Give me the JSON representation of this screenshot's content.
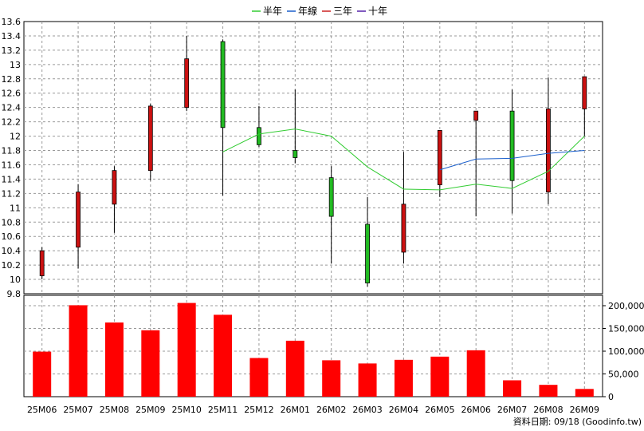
{
  "legend": [
    {
      "label": "半年",
      "color": "#33cc33"
    },
    {
      "label": "年線",
      "color": "#1a5fcc"
    },
    {
      "label": "三年",
      "color": "#cc2222"
    },
    {
      "label": "十年",
      "color": "#5522aa"
    }
  ],
  "footer": {
    "source": "資料日期: 09/18  (Goodinfo.tw)"
  },
  "colors": {
    "up": "#cc1111",
    "down": "#22bb22",
    "volume": "#ff0000",
    "half_year": "#33cc33",
    "year_line": "#1a5fcc",
    "grid": "#999999",
    "axis": "#000000"
  },
  "chart_data": [
    {
      "type": "candlestick",
      "categories": [
        "25M06",
        "25M07",
        "25M08",
        "25M09",
        "25M10",
        "25M11",
        "25M12",
        "26M01",
        "26M02",
        "26M03",
        "26M04",
        "26M05",
        "26M06",
        "26M07",
        "26M08",
        "26M09"
      ],
      "ylim": [
        9.8,
        13.6
      ],
      "yticks": [
        9.8,
        10,
        10.2,
        10.4,
        10.6,
        10.8,
        11,
        11.2,
        11.4,
        11.6,
        11.8,
        12,
        12.2,
        12.4,
        12.6,
        12.8,
        13,
        13.2,
        13.4,
        13.6
      ],
      "ytick_labels": [
        "9.8",
        "10",
        "10.2",
        "10.4",
        "10.6",
        "10.8",
        "11",
        "11.2",
        "11.4",
        "11.6",
        "11.8",
        "12",
        "12.2",
        "12.4",
        "12.6",
        "12.8",
        "13",
        "13.2",
        "13.4",
        "13.6"
      ],
      "candles": [
        {
          "open": 10.05,
          "close": 10.4,
          "high": 10.45,
          "low": 10.0
        },
        {
          "open": 10.45,
          "close": 11.22,
          "high": 11.33,
          "low": 10.15
        },
        {
          "open": 11.05,
          "close": 11.52,
          "high": 11.58,
          "low": 10.65
        },
        {
          "open": 11.52,
          "close": 12.42,
          "high": 12.45,
          "low": 11.38
        },
        {
          "open": 12.4,
          "close": 13.08,
          "high": 13.4,
          "low": 12.35
        },
        {
          "open": 13.32,
          "close": 12.12,
          "high": 13.35,
          "low": 11.17
        },
        {
          "open": 12.12,
          "close": 11.88,
          "high": 12.42,
          "low": 11.85
        },
        {
          "open": 11.8,
          "close": 11.7,
          "high": 12.65,
          "low": 11.62
        },
        {
          "open": 11.42,
          "close": 10.88,
          "high": 11.58,
          "low": 10.22
        },
        {
          "open": 10.77,
          "close": 9.95,
          "high": 11.15,
          "low": 9.9
        },
        {
          "open": 10.38,
          "close": 11.05,
          "high": 11.78,
          "low": 10.22
        },
        {
          "open": 11.32,
          "close": 12.08,
          "high": 12.08,
          "low": 11.15
        },
        {
          "open": 12.22,
          "close": 12.35,
          "high": 12.35,
          "low": 10.88
        },
        {
          "open": 12.35,
          "close": 11.38,
          "high": 12.65,
          "low": 10.92
        },
        {
          "open": 11.22,
          "close": 12.38,
          "high": 12.82,
          "low": 11.05
        },
        {
          "open": 12.38,
          "close": 12.83,
          "high": 12.83,
          "low": 12.0
        }
      ],
      "series": [
        {
          "name": "半年",
          "values": [
            null,
            null,
            null,
            null,
            null,
            11.78,
            12.03,
            12.1,
            12.0,
            11.57,
            11.26,
            11.25,
            11.33,
            11.27,
            11.51,
            12.0
          ]
        },
        {
          "name": "年線",
          "values": [
            null,
            null,
            null,
            null,
            null,
            null,
            null,
            null,
            null,
            null,
            null,
            11.53,
            11.68,
            11.69,
            11.76,
            11.8
          ]
        }
      ]
    },
    {
      "type": "bar",
      "categories": [
        "25M06",
        "25M07",
        "25M08",
        "25M09",
        "25M10",
        "25M11",
        "25M12",
        "26M01",
        "26M02",
        "26M03",
        "26M04",
        "26M05",
        "26M06",
        "26M07",
        "26M08",
        "26M09"
      ],
      "values": [
        99000,
        201000,
        163000,
        146000,
        206000,
        180000,
        85000,
        123000,
        80000,
        73000,
        81000,
        88000,
        102000,
        36000,
        26000,
        17000
      ],
      "ylim": [
        0,
        200000
      ],
      "yticks": [
        0,
        50000,
        100000,
        150000,
        200000
      ],
      "ytick_labels": [
        "0",
        "50,000",
        "100,000",
        "150,000",
        "200,000"
      ]
    }
  ]
}
